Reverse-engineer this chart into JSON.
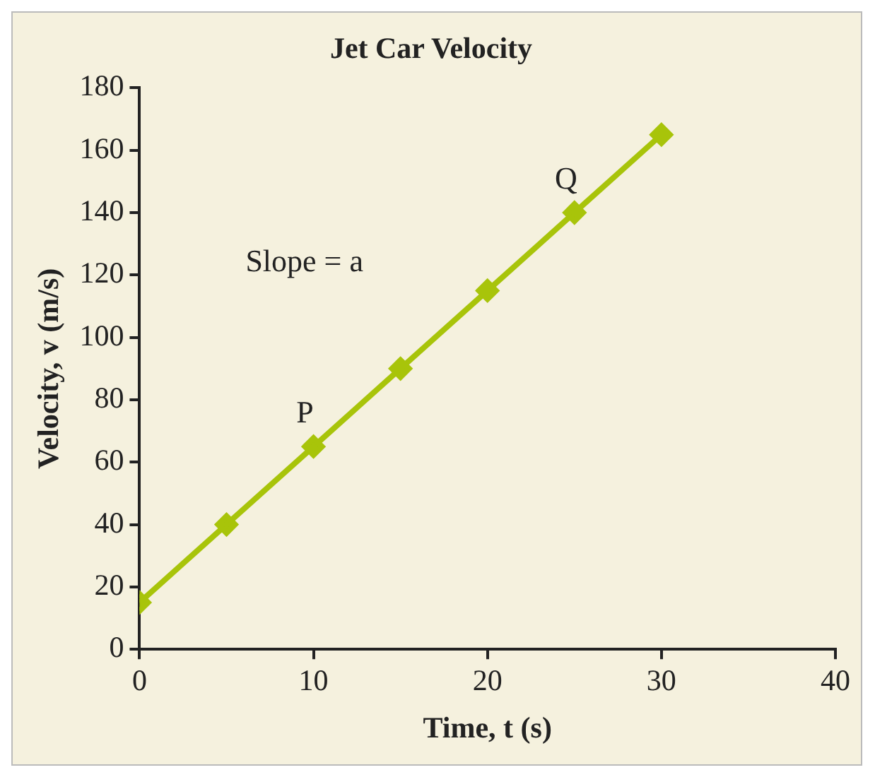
{
  "chart_data": {
    "type": "line",
    "title": "Jet Car Velocity",
    "xlabel": "Time, t (s)",
    "ylabel": "Velocity, v (m/s)",
    "x": [
      0,
      5,
      10,
      15,
      20,
      25,
      30
    ],
    "series": [
      {
        "color": "#a8c40a",
        "values": [
          15,
          40,
          65,
          90,
          115,
          140,
          165
        ]
      }
    ],
    "xlim": [
      0,
      40
    ],
    "xticks": [
      0,
      10,
      20,
      30,
      40
    ],
    "ylim": [
      0,
      180
    ],
    "yticks": [
      0,
      20,
      40,
      60,
      80,
      100,
      120,
      140,
      160,
      180
    ],
    "grid": false,
    "legend": false,
    "marker": "diamond",
    "line_style": "solid",
    "annotations": [
      {
        "text": "P",
        "x": 10,
        "y": 65
      },
      {
        "text": "Q",
        "x": 25,
        "y": 140
      },
      "Slope = a"
    ]
  }
}
